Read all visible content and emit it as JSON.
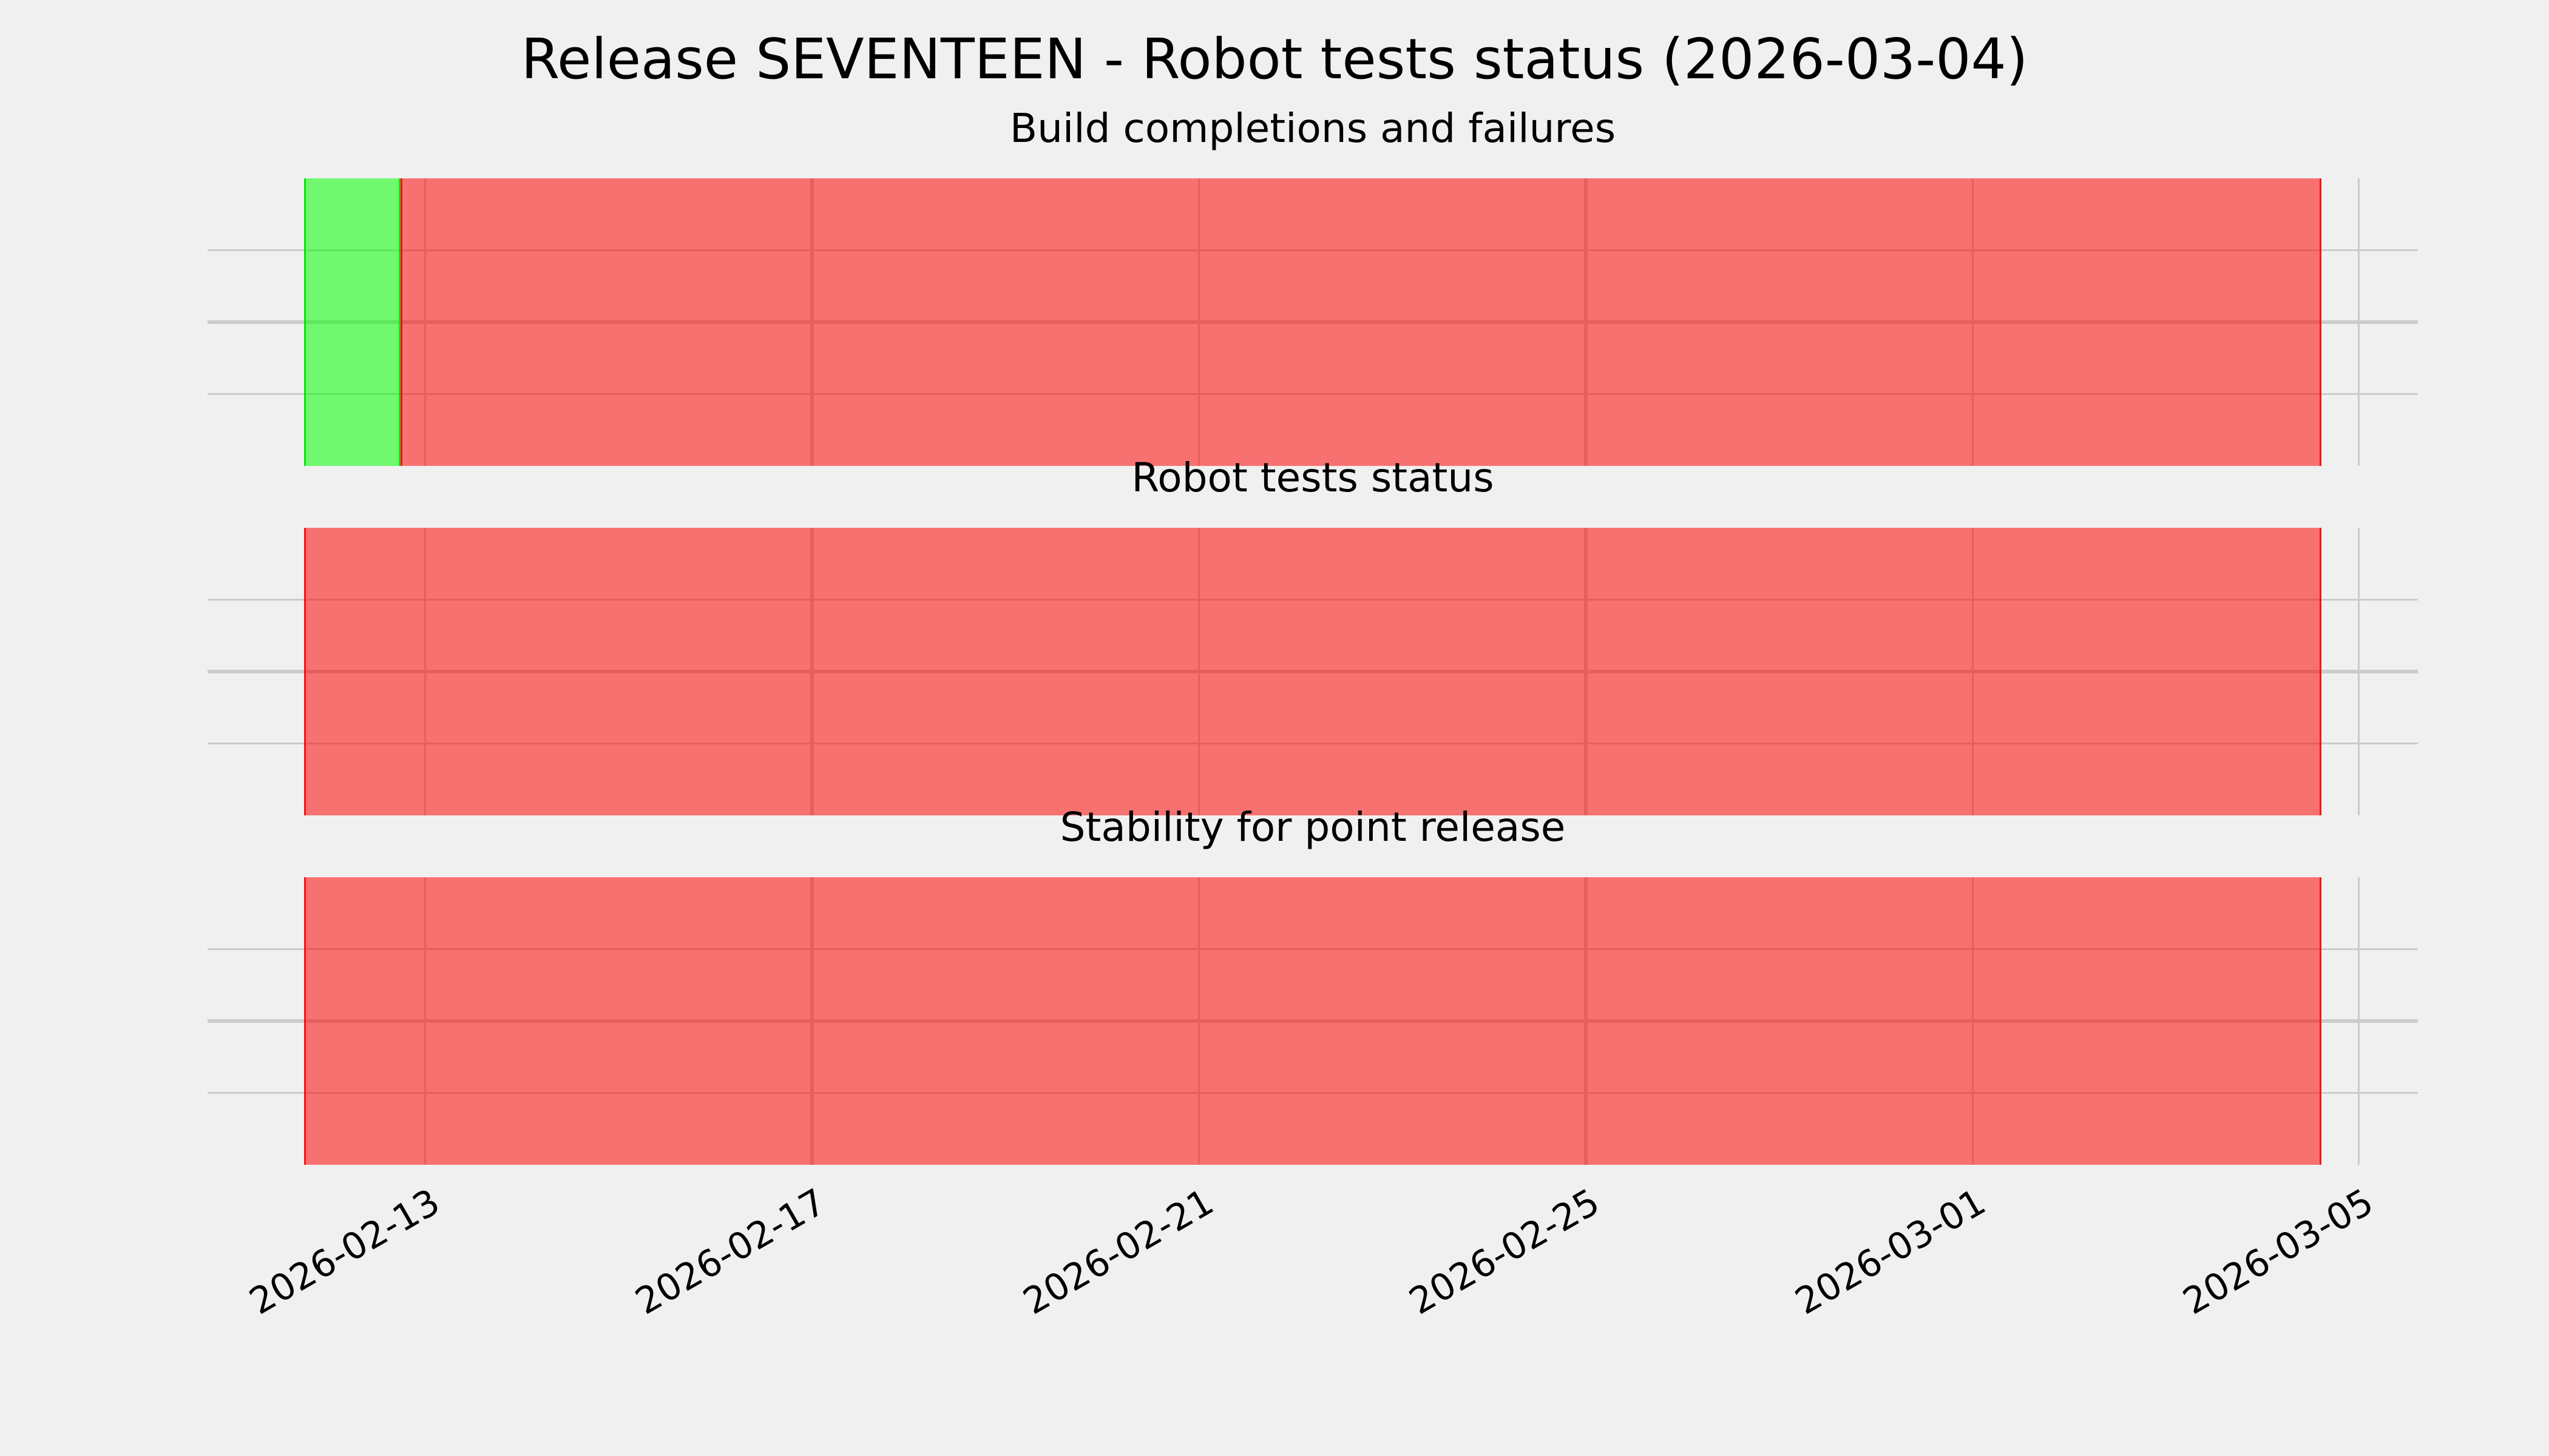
{
  "figure": {
    "title": "Release SEVENTEEN - Robot tests status (2026-03-04)",
    "background_color": "#f0f0f0",
    "grid_color": "#cbcbcb",
    "text_color": "#000000"
  },
  "status_colors": {
    "success_fill": "rgba(0,255,0,0.53)",
    "success_edge": "rgba(0,225,0,0.9)",
    "failure_fill": "rgba(255,0,0,0.53)",
    "failure_edge": "rgba(255,0,0,0.85)",
    "success_hex_over_bg": "#71f871",
    "failure_hex_over_bg": "#f87171"
  },
  "chart_data": {
    "type": "timeline",
    "title": "Release SEVENTEEN - Robot tests status (2026-03-04)",
    "legend": "none",
    "grid": "on",
    "x_axis": {
      "kind": "date",
      "xlim": [
        "2026-02-10T18:00:00",
        "2026-03-05T14:30:00"
      ],
      "ticks": [
        {
          "label": "2026-02-13",
          "date": "2026-02-13T00:00:00"
        },
        {
          "label": "2026-02-17",
          "date": "2026-02-17T00:00:00"
        },
        {
          "label": "2026-02-21",
          "date": "2026-02-21T00:00:00"
        },
        {
          "label": "2026-02-25",
          "date": "2026-02-25T00:00:00"
        },
        {
          "label": "2026-03-01",
          "date": "2026-03-01T00:00:00"
        },
        {
          "label": "2026-03-05",
          "date": "2026-03-05T00:00:00"
        }
      ],
      "tick_rotation_deg": -30
    },
    "y_axis": {
      "ylim": [
        0,
        4
      ],
      "gridline_values": [
        1,
        2,
        3
      ],
      "tick_labels_visible": false
    },
    "subplots": [
      {
        "title": "Build completions and failures",
        "segments": [
          {
            "status": "success",
            "start": "2026-02-11T18:00:00",
            "end": "2026-02-12T18:00:00"
          },
          {
            "status": "failure",
            "start": "2026-02-12T18:00:00",
            "end": "2026-03-04T14:30:00"
          }
        ]
      },
      {
        "title": "Robot tests status",
        "segments": [
          {
            "status": "failure",
            "start": "2026-02-11T18:00:00",
            "end": "2026-03-04T14:30:00"
          }
        ]
      },
      {
        "title": "Stability for point release",
        "segments": [
          {
            "status": "failure",
            "start": "2026-02-11T18:00:00",
            "end": "2026-03-04T14:30:00"
          }
        ]
      }
    ]
  }
}
